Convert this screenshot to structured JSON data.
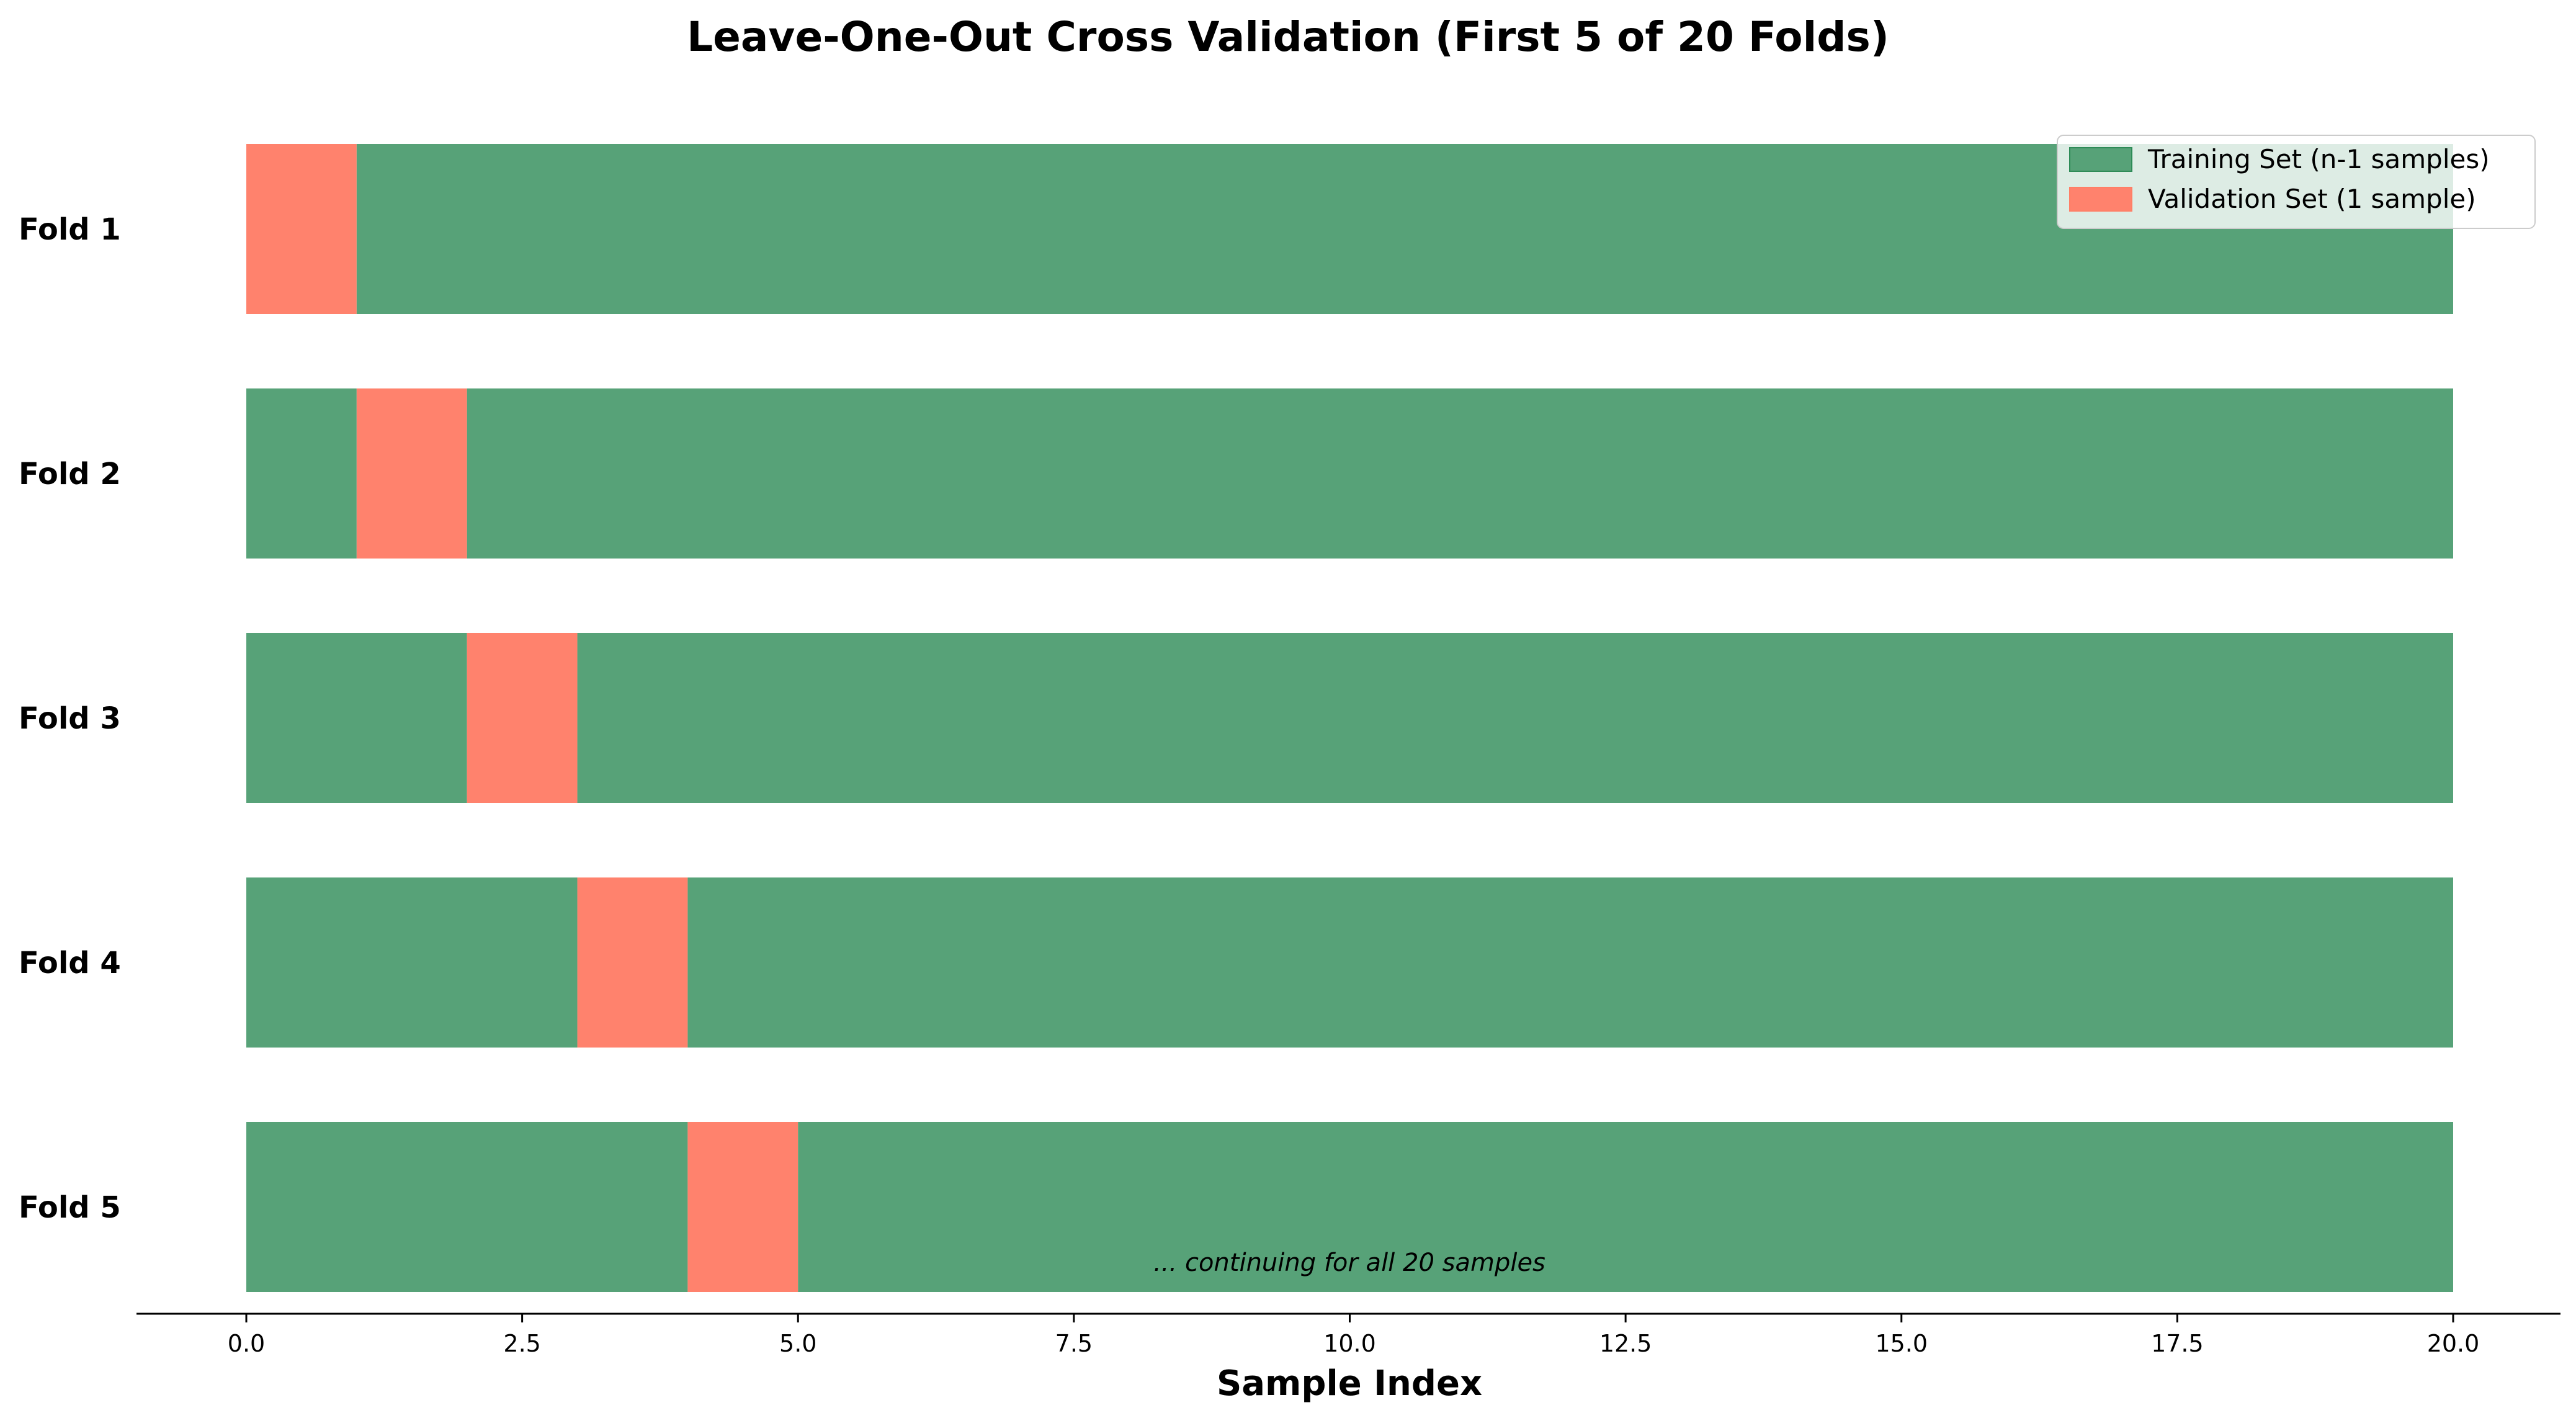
{
  "chart_data": {
    "type": "bar",
    "orientation": "horizontal-stacked",
    "title": "Leave-One-Out Cross Validation (First 5 of 20 Folds)",
    "xlabel": "Sample Index",
    "ylabel": "",
    "xlim": [
      -1,
      21
    ],
    "xticks": [
      0.0,
      2.5,
      5.0,
      7.5,
      10.0,
      12.5,
      15.0,
      17.5,
      20.0
    ],
    "xtick_labels": [
      "0.0",
      "2.5",
      "5.0",
      "7.5",
      "10.0",
      "12.5",
      "15.0",
      "17.5",
      "20.0"
    ],
    "n_samples": 20,
    "folds": [
      {
        "label": "Fold 1",
        "validation_index": 0
      },
      {
        "label": "Fold 2",
        "validation_index": 1
      },
      {
        "label": "Fold 3",
        "validation_index": 2
      },
      {
        "label": "Fold 4",
        "validation_index": 3
      },
      {
        "label": "Fold 5",
        "validation_index": 4
      }
    ],
    "legend": {
      "placement": "top-right",
      "entries": [
        {
          "name": "Training Set (n-1 samples)",
          "color": "#2e8b57"
        },
        {
          "name": "Validation Set (1 sample)",
          "color": "#ff7f66"
        }
      ]
    },
    "annotation": "... continuing for all 20 samples",
    "colors": {
      "training": "#57a278",
      "validation": "#ff826d"
    },
    "grid": false
  }
}
